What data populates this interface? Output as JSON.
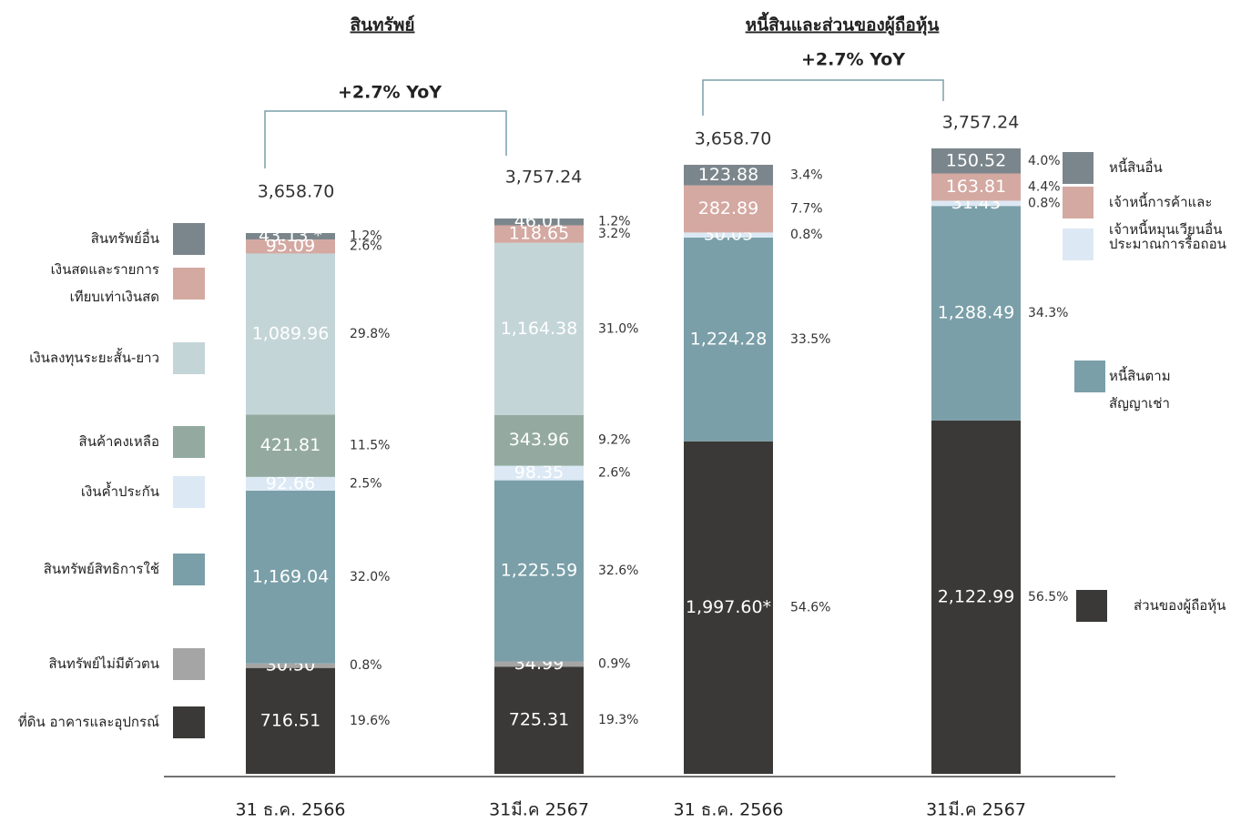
{
  "chart_data": [
    {
      "type": "stacked-bar",
      "title": "สินทรัพย์",
      "annotation": "+2.7% YoY",
      "categories": [
        "31 ธ.ค. 2566",
        "31มี.ค 2567"
      ],
      "totals": [
        3658.7,
        3757.24
      ],
      "total_labels": [
        "3,658.70",
        "3,757.24"
      ],
      "series": [
        {
          "name": "ที่ดิน อาคารและอุปกรณ์",
          "color": "#3a3937",
          "values": [
            716.51,
            725.31
          ],
          "value_labels": [
            "716.51",
            "725.31"
          ],
          "shares": [
            19.6,
            19.3
          ],
          "share_labels": [
            "19.6%",
            "19.3%"
          ]
        },
        {
          "name": "สินทรัพย์ไม่มีตัวตน",
          "color": "#a5a5a5",
          "values": [
            30.5,
            34.99
          ],
          "value_labels": [
            "30.50",
            "34.99"
          ],
          "shares": [
            0.8,
            0.9
          ],
          "share_labels": [
            "0.8%",
            "0.9%"
          ]
        },
        {
          "name": "สินทรัพย์สิทธิการใช้",
          "color": "#7a9fa8",
          "values": [
            1169.04,
            1225.59
          ],
          "value_labels": [
            "1,169.04",
            "1,225.59"
          ],
          "shares": [
            32.0,
            32.6
          ],
          "share_labels": [
            "32.0%",
            "32.6%"
          ]
        },
        {
          "name": "เงินค้ำประกัน",
          "color": "#dce9f5",
          "values": [
            92.66,
            98.35
          ],
          "value_labels": [
            "92.66",
            "98.35"
          ],
          "shares": [
            2.5,
            2.6
          ],
          "share_labels": [
            "2.5%",
            "2.6%"
          ]
        },
        {
          "name": "สินค้าคงเหลือ",
          "color": "#94aaa0",
          "values": [
            421.81,
            343.96
          ],
          "value_labels": [
            "421.81",
            "343.96"
          ],
          "shares": [
            11.5,
            9.2
          ],
          "share_labels": [
            "11.5%",
            "9.2%"
          ]
        },
        {
          "name": "เงินลงทุนระยะสั้น-ยาว",
          "color": "#c4d5d8",
          "values": [
            1089.96,
            1164.38
          ],
          "value_labels": [
            "1,089.96",
            "1,164.38"
          ],
          "shares": [
            29.8,
            31.0
          ],
          "share_labels": [
            "29.8%",
            "31.0%"
          ]
        },
        {
          "name": "เงินสดและรายการ\nเทียบเท่าเงินสด",
          "color": "#d4a9a2",
          "values": [
            95.09,
            118.65
          ],
          "value_labels": [
            "95.09",
            "118.65"
          ],
          "shares": [
            2.6,
            3.2
          ],
          "share_labels": [
            "2.6%",
            "3.2%"
          ]
        },
        {
          "name": "สินทรัพย์อื่น",
          "color": "#7b868c",
          "values": [
            43.13,
            46.01
          ],
          "value_labels": [
            "43.13 *",
            "46.01"
          ],
          "shares": [
            1.2,
            1.2
          ],
          "share_labels": [
            "1.2%",
            "1.2%"
          ]
        }
      ]
    },
    {
      "type": "stacked-bar",
      "title": "หนี้สินและส่วนของผู้ถือหุ้น",
      "annotation": "+2.7% YoY",
      "categories": [
        "31 ธ.ค. 2566",
        "31มี.ค 2567"
      ],
      "totals": [
        3658.7,
        3757.24
      ],
      "total_labels": [
        "3,658.70",
        "3,757.24"
      ],
      "series": [
        {
          "name": "ส่วนของผู้ถือหุ้น",
          "color": "#3a3937",
          "values": [
            1997.6,
            2122.99
          ],
          "value_labels": [
            "1,997.60*",
            "2,122.99"
          ],
          "shares": [
            54.6,
            56.5
          ],
          "share_labels": [
            "54.6%",
            "56.5%"
          ]
        },
        {
          "name": "หนี้สินตาม\nสัญญาเช่า",
          "color": "#7a9fa8",
          "values": [
            1224.28,
            1288.49
          ],
          "value_labels": [
            "1,224.28",
            "1,288.49"
          ],
          "shares": [
            33.5,
            34.3
          ],
          "share_labels": [
            "33.5%",
            "34.3%"
          ]
        },
        {
          "name": "ประมาณการรื้อถอน",
          "color": "#dce9f5",
          "values": [
            30.05,
            31.43
          ],
          "value_labels": [
            "30.05",
            "31.43"
          ],
          "shares": [
            0.8,
            0.8
          ],
          "share_labels": [
            "0.8%",
            "0.8%"
          ]
        },
        {
          "name": "เจ้าหนี้การค้าและ\nเจ้าหนี้หมุนเวียนอื่น",
          "color": "#d4a9a2",
          "values": [
            282.89,
            163.81
          ],
          "value_labels": [
            "282.89",
            "163.81"
          ],
          "shares": [
            7.7,
            4.4
          ],
          "share_labels": [
            "7.7%",
            "4.4%"
          ]
        },
        {
          "name": "หนี้สินอื่น",
          "color": "#7b868c",
          "values": [
            123.88,
            150.52
          ],
          "value_labels": [
            "123.88",
            "150.52"
          ],
          "shares": [
            3.4,
            4.0
          ],
          "share_labels": [
            "3.4%",
            "4.0%"
          ]
        }
      ]
    }
  ]
}
